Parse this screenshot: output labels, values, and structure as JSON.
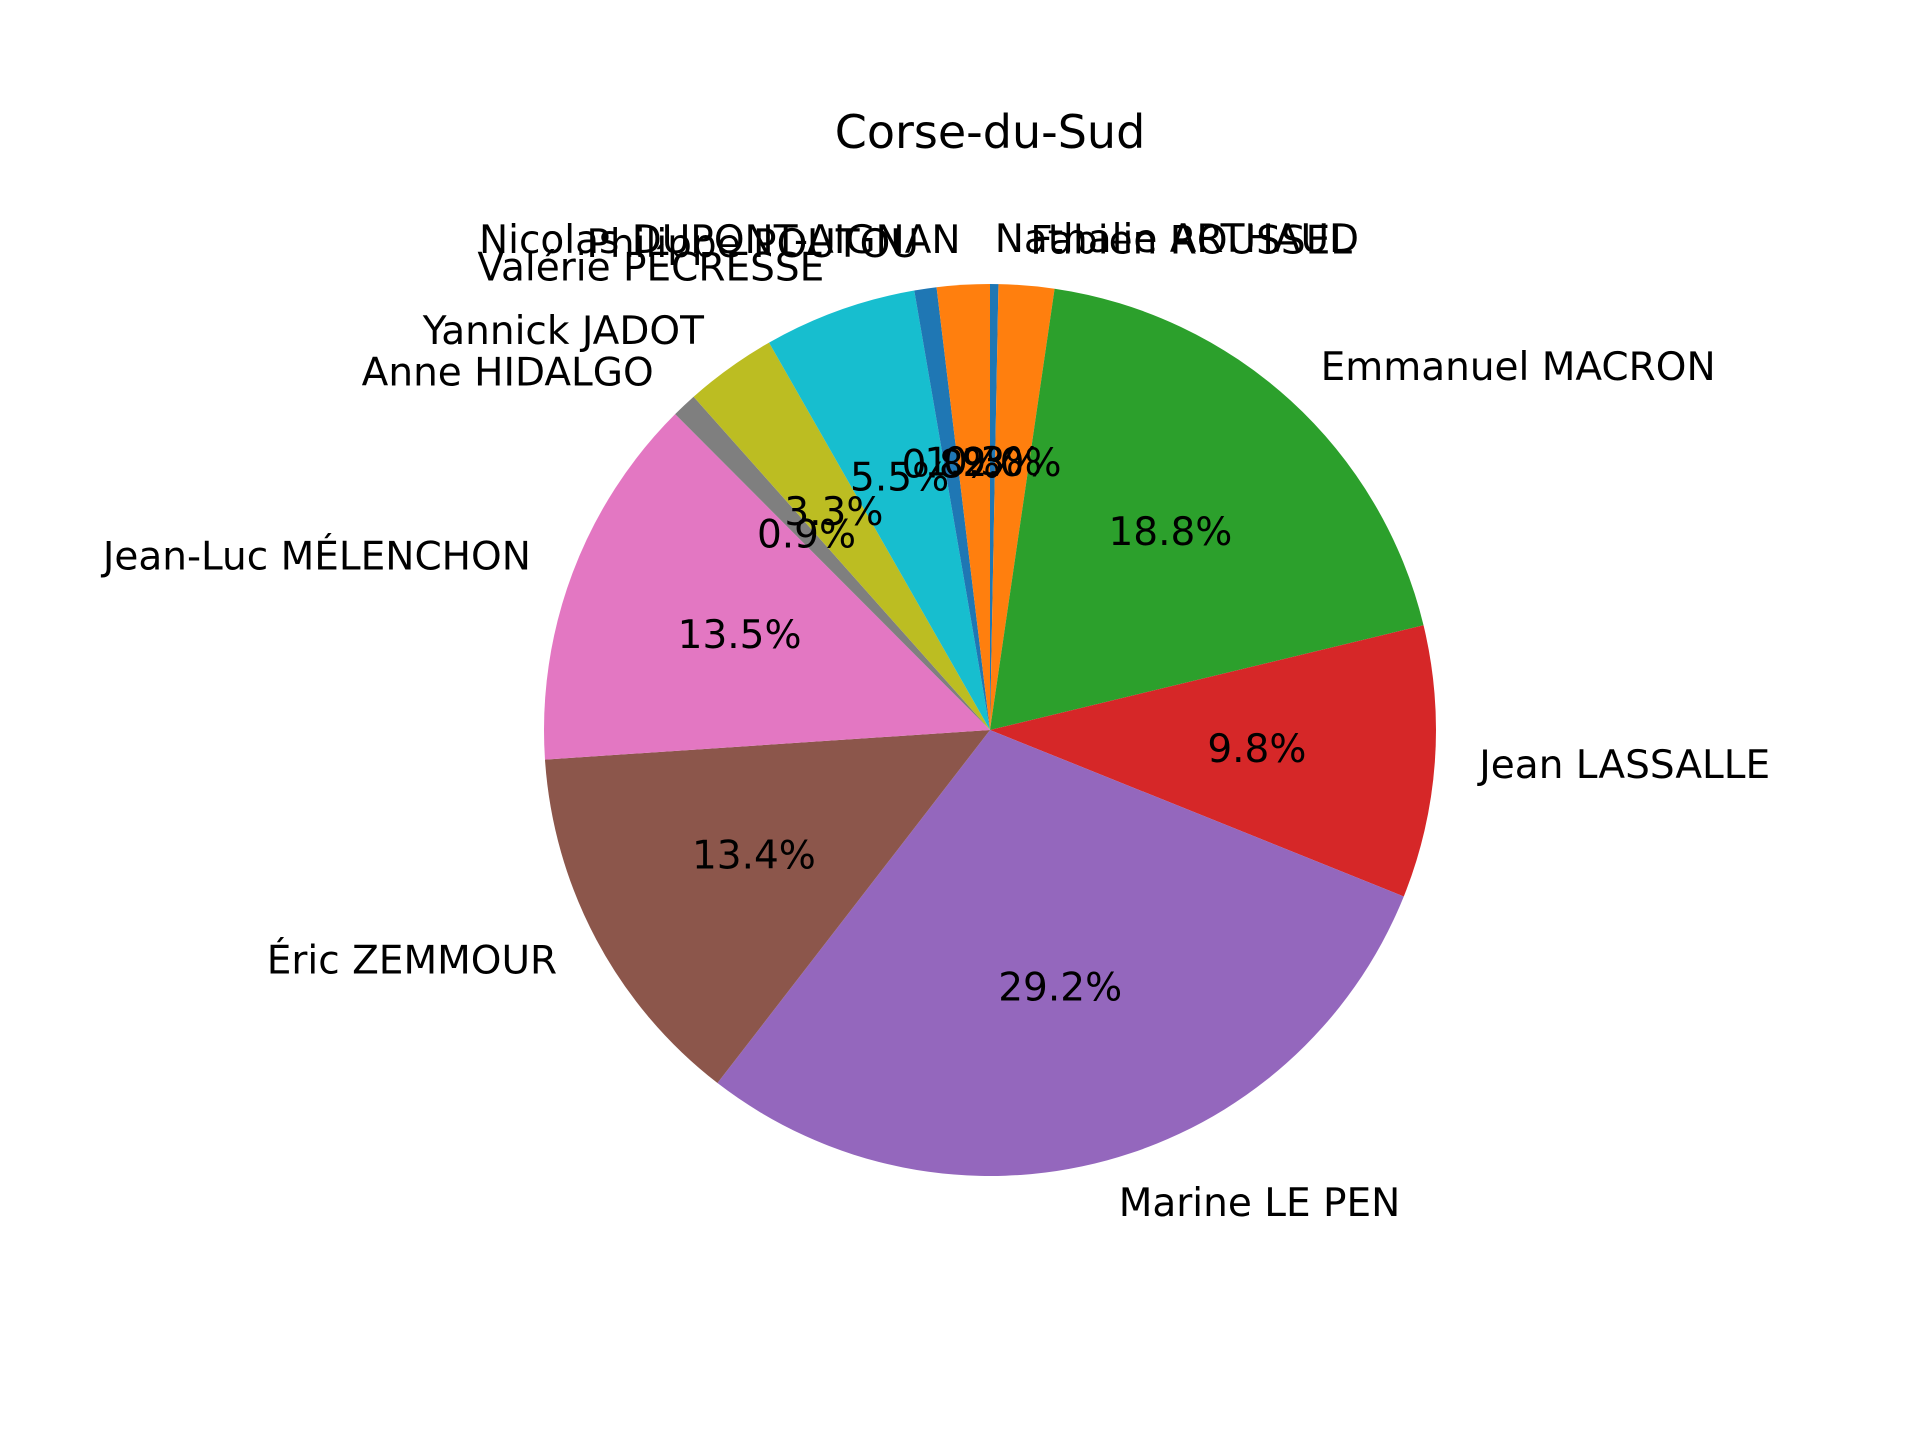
{
  "chart_data": {
    "type": "pie",
    "title": "Corse-du-Sud",
    "start_angle_deg": 90,
    "direction": "clockwise",
    "slices": [
      {
        "label": "Nathalie ARTHAUD",
        "value": 0.3,
        "pct_label": "0.3%",
        "color": "#1f77b4"
      },
      {
        "label": "Fabien ROUSSEL",
        "value": 2.0,
        "pct_label": "2.0%",
        "color": "#ff7f0e"
      },
      {
        "label": "Emmanuel MACRON",
        "value": 18.8,
        "pct_label": "18.8%",
        "color": "#2ca02c"
      },
      {
        "label": "Jean LASSALLE",
        "value": 9.8,
        "pct_label": "9.8%",
        "color": "#d62728"
      },
      {
        "label": "Marine LE PEN",
        "value": 29.2,
        "pct_label": "29.2%",
        "color": "#9467bd"
      },
      {
        "label": "Éric ZEMMOUR",
        "value": 13.4,
        "pct_label": "13.4%",
        "color": "#8c564b"
      },
      {
        "label": "Jean-Luc MÉLENCHON",
        "value": 13.5,
        "pct_label": "13.5%",
        "color": "#e377c2"
      },
      {
        "label": "Anne HIDALGO",
        "value": 0.9,
        "pct_label": "0.9%",
        "color": "#7f7f7f"
      },
      {
        "label": "Yannick JADOT",
        "value": 3.3,
        "pct_label": "3.3%",
        "color": "#bcbd22"
      },
      {
        "label": "Valérie PÉCRESSE",
        "value": 5.5,
        "pct_label": "5.5%",
        "color": "#17becf"
      },
      {
        "label": "Philippe POUTOU",
        "value": 0.8,
        "pct_label": "0.8%",
        "color": "#1f77b4"
      },
      {
        "label": "Nicolas DUPONT-AIGNAN",
        "value": 1.9,
        "pct_label": "1.9%",
        "color": "#ff7f0e"
      }
    ]
  }
}
